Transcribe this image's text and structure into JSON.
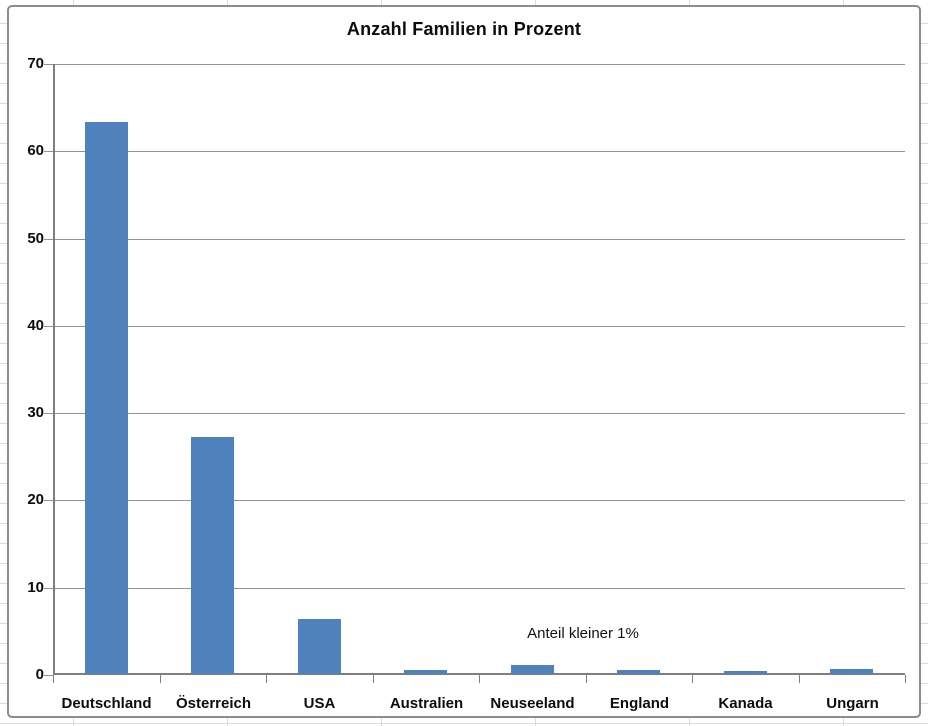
{
  "chart_data": {
    "type": "bar",
    "title": "Anzahl Familien in Prozent",
    "categories": [
      "Deutschland",
      "Österreich",
      "USA",
      "Australien",
      "Neuseeland",
      "England",
      "Kanada",
      "Ungarn"
    ],
    "values": [
      63.2,
      27.2,
      6.3,
      0.5,
      1.0,
      0.5,
      0.3,
      0.6
    ],
    "annotation": "Anteil kleiner 1%",
    "xlabel": "",
    "ylabel": "",
    "ylim": [
      0,
      70
    ],
    "ytick_step": 10,
    "grid": true,
    "legend": "none",
    "bar_color": "#4F81BD",
    "axis_color": "#7f7f7f",
    "gridline_color": "#929292",
    "worksheet_gridline_color": "#d9dde3"
  }
}
